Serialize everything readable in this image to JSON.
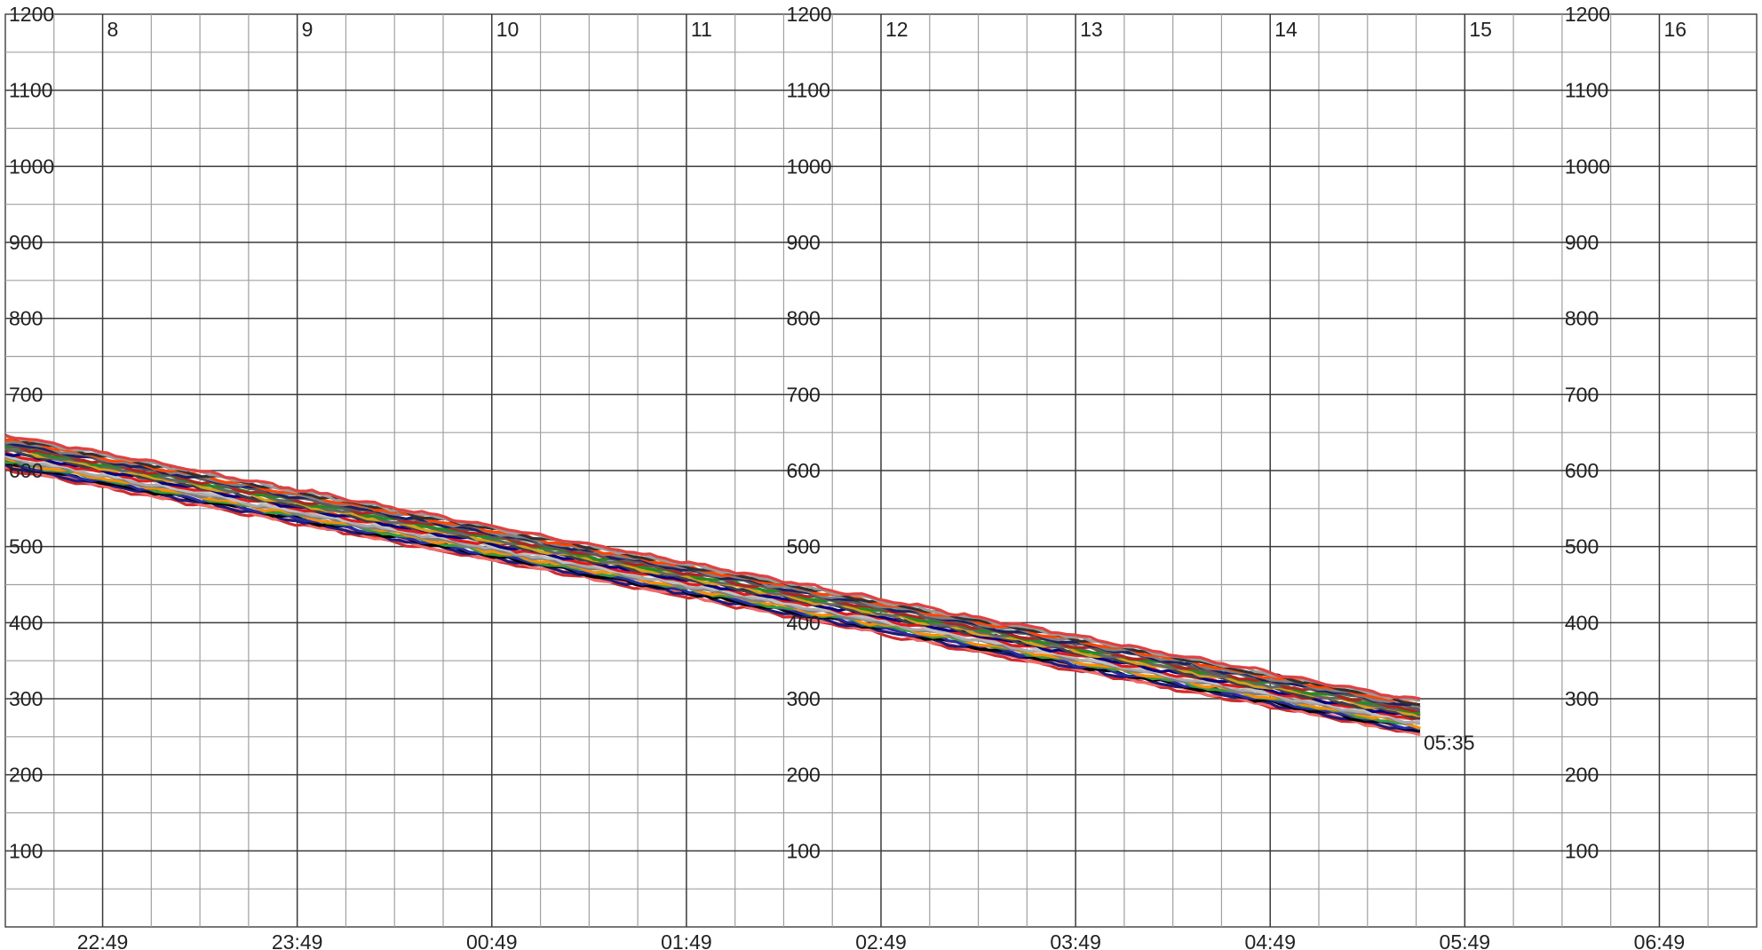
{
  "chart_data": {
    "type": "line",
    "title": "",
    "xlabel": "",
    "ylabel": "",
    "ylim": [
      0,
      1200
    ],
    "y_ticks": [
      "100",
      "200",
      "300",
      "400",
      "500",
      "600",
      "700",
      "800",
      "900",
      "1000",
      "1100",
      "1200"
    ],
    "time_ticks": [
      "22:49",
      "23:49",
      "00:49",
      "01:49",
      "02:49",
      "03:49",
      "04:49",
      "05:49",
      "06:49"
    ],
    "hour_labels": [
      "8",
      "9",
      "10",
      "11",
      "12",
      "13",
      "14",
      "15",
      "16"
    ],
    "grid": true,
    "legend": "none",
    "end_label": "05:35",
    "x_range_hours": [
      -0.5,
      8.5
    ],
    "x_units": "hours after 22:49",
    "band_start": {
      "x": -0.5,
      "y": 625
    },
    "band_end": {
      "x": 6.77,
      "y": 275
    },
    "band_spread": 45,
    "series_count": 24,
    "series_colors": [
      "#d22b2b",
      "#f26b6b",
      "#1b1b7a",
      "#000000",
      "#2a2aa0",
      "#3a9a3a",
      "#ff8c00",
      "#7f7f7f",
      "#a9a9a9",
      "#c0c0c0",
      "#e31a1c",
      "#000080",
      "#404040",
      "#d4a017",
      "#666666",
      "#228b22",
      "#b22222",
      "#5a5a5a",
      "#1f1f5f",
      "#808080",
      "#ff4500",
      "#303030",
      "#9a9a9a",
      "#e04040"
    ]
  }
}
